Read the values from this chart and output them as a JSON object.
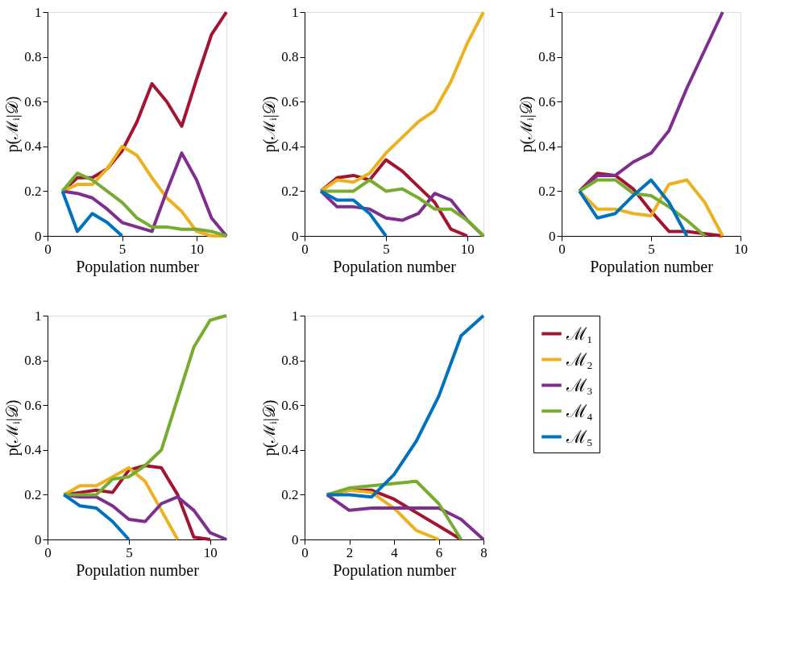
{
  "chart_data": [
    {
      "type": "line",
      "xlabel": "Population number",
      "ylabel": "p(ℳᵢ|𝒟)",
      "xlim": [
        0,
        12
      ],
      "xticks": [
        0,
        5,
        10
      ],
      "ylim": [
        0,
        1
      ],
      "yticks": [
        0,
        0.2,
        0.4,
        0.6,
        0.8,
        1
      ],
      "grid": false,
      "legend": false,
      "line_style": "solid",
      "marker": "none",
      "series": [
        {
          "color": "#a2142f",
          "x": [
            1,
            2,
            3,
            4,
            5,
            6,
            7,
            8,
            9,
            10,
            11,
            12
          ],
          "values": [
            0.2,
            0.26,
            0.26,
            0.3,
            0.38,
            0.51,
            0.68,
            0.6,
            0.49,
            0.7,
            0.9,
            1.0
          ]
        },
        {
          "color": "#edb120",
          "x": [
            1,
            2,
            3,
            4,
            5,
            6,
            7,
            8,
            9,
            10,
            11,
            12
          ],
          "values": [
            0.2,
            0.23,
            0.23,
            0.3,
            0.4,
            0.36,
            0.26,
            0.17,
            0.11,
            0.02,
            0,
            0
          ]
        },
        {
          "color": "#7e2f8e",
          "x": [
            1,
            2,
            3,
            4,
            5,
            6,
            7,
            8,
            9,
            10,
            11,
            12
          ],
          "values": [
            0.2,
            0.19,
            0.17,
            0.12,
            0.06,
            0.04,
            0.02,
            0.2,
            0.37,
            0.25,
            0.08,
            0
          ]
        },
        {
          "color": "#77ac30",
          "x": [
            1,
            2,
            3,
            4,
            5,
            6,
            7,
            8,
            9,
            10,
            11,
            12
          ],
          "values": [
            0.2,
            0.28,
            0.25,
            0.2,
            0.15,
            0.08,
            0.04,
            0.04,
            0.03,
            0.03,
            0.02,
            0
          ]
        },
        {
          "color": "#0072bd",
          "x": [
            1,
            2,
            3,
            4,
            5
          ],
          "values": [
            0.2,
            0.02,
            0.1,
            0.06,
            0
          ]
        }
      ]
    },
    {
      "type": "line",
      "xlabel": "Population number",
      "ylabel": "p(ℳᵢ|𝒟)",
      "xlim": [
        0,
        11
      ],
      "xticks": [
        0,
        5,
        10
      ],
      "ylim": [
        0,
        1
      ],
      "yticks": [
        0,
        0.2,
        0.4,
        0.6,
        0.8,
        1
      ],
      "grid": false,
      "legend": false,
      "line_style": "solid",
      "marker": "none",
      "series": [
        {
          "color": "#a2142f",
          "x": [
            1,
            2,
            3,
            4,
            5,
            6,
            7,
            8,
            9,
            10
          ],
          "values": [
            0.2,
            0.26,
            0.27,
            0.25,
            0.34,
            0.29,
            0.22,
            0.15,
            0.03,
            0
          ]
        },
        {
          "color": "#edb120",
          "x": [
            1,
            2,
            3,
            4,
            5,
            6,
            7,
            8,
            9,
            10,
            11
          ],
          "values": [
            0.2,
            0.25,
            0.24,
            0.28,
            0.37,
            0.44,
            0.51,
            0.56,
            0.69,
            0.86,
            1.0
          ]
        },
        {
          "color": "#7e2f8e",
          "x": [
            1,
            2,
            3,
            4,
            5,
            6,
            7,
            8,
            9,
            10,
            11
          ],
          "values": [
            0.2,
            0.13,
            0.13,
            0.12,
            0.08,
            0.07,
            0.1,
            0.19,
            0.16,
            0.07,
            0
          ]
        },
        {
          "color": "#77ac30",
          "x": [
            1,
            2,
            3,
            4,
            5,
            6,
            7,
            8,
            9,
            10,
            11
          ],
          "values": [
            0.2,
            0.2,
            0.2,
            0.25,
            0.2,
            0.21,
            0.17,
            0.12,
            0.12,
            0.07,
            0
          ]
        },
        {
          "color": "#0072bd",
          "x": [
            1,
            2,
            3,
            4,
            5
          ],
          "values": [
            0.2,
            0.16,
            0.16,
            0.1,
            0
          ]
        }
      ]
    },
    {
      "type": "line",
      "xlabel": "Population number",
      "ylabel": "p(ℳᵢ|𝒟)",
      "xlim": [
        0,
        10
      ],
      "xticks": [
        0,
        5,
        10
      ],
      "ylim": [
        0,
        1
      ],
      "yticks": [
        0,
        0.2,
        0.4,
        0.6,
        0.8,
        1
      ],
      "grid": false,
      "legend": false,
      "line_style": "solid",
      "marker": "none",
      "series": [
        {
          "color": "#a2142f",
          "x": [
            1,
            2,
            3,
            4,
            5,
            6,
            7,
            8,
            9
          ],
          "values": [
            0.2,
            0.28,
            0.27,
            0.21,
            0.11,
            0.02,
            0.02,
            0.01,
            0
          ]
        },
        {
          "color": "#edb120",
          "x": [
            1,
            2,
            3,
            4,
            5,
            6,
            7,
            8,
            9
          ],
          "values": [
            0.2,
            0.12,
            0.12,
            0.1,
            0.09,
            0.23,
            0.25,
            0.15,
            0
          ]
        },
        {
          "color": "#7e2f8e",
          "x": [
            1,
            2,
            3,
            4,
            5,
            6,
            7,
            8,
            9
          ],
          "values": [
            0.2,
            0.27,
            0.27,
            0.33,
            0.37,
            0.47,
            0.66,
            0.83,
            1.0
          ]
        },
        {
          "color": "#77ac30",
          "x": [
            1,
            2,
            3,
            4,
            5,
            6,
            7,
            8
          ],
          "values": [
            0.2,
            0.25,
            0.25,
            0.19,
            0.18,
            0.13,
            0.07,
            0
          ]
        },
        {
          "color": "#0072bd",
          "x": [
            1,
            2,
            3,
            4,
            5,
            6,
            7
          ],
          "values": [
            0.2,
            0.08,
            0.1,
            0.18,
            0.25,
            0.15,
            0
          ]
        }
      ]
    },
    {
      "type": "line",
      "xlabel": "Population number",
      "ylabel": "p(ℳᵢ|𝒟)",
      "xlim": [
        0,
        11
      ],
      "xticks": [
        0,
        5,
        10
      ],
      "ylim": [
        0,
        1
      ],
      "yticks": [
        0,
        0.2,
        0.4,
        0.6,
        0.8,
        1
      ],
      "grid": false,
      "legend": false,
      "line_style": "solid",
      "marker": "none",
      "series": [
        {
          "color": "#a2142f",
          "x": [
            1,
            2,
            3,
            4,
            5,
            6,
            7,
            8,
            9,
            10
          ],
          "values": [
            0.2,
            0.21,
            0.22,
            0.21,
            0.31,
            0.33,
            0.32,
            0.2,
            0.01,
            0
          ]
        },
        {
          "color": "#edb120",
          "x": [
            1,
            2,
            3,
            4,
            5,
            6,
            7,
            8
          ],
          "values": [
            0.2,
            0.24,
            0.24,
            0.28,
            0.32,
            0.26,
            0.13,
            0
          ]
        },
        {
          "color": "#7e2f8e",
          "x": [
            1,
            2,
            3,
            4,
            5,
            6,
            7,
            8,
            9,
            10,
            11
          ],
          "values": [
            0.2,
            0.19,
            0.19,
            0.15,
            0.09,
            0.08,
            0.16,
            0.19,
            0.13,
            0.03,
            0
          ]
        },
        {
          "color": "#77ac30",
          "x": [
            1,
            2,
            3,
            4,
            5,
            6,
            7,
            8,
            9,
            10,
            11
          ],
          "values": [
            0.2,
            0.2,
            0.2,
            0.27,
            0.28,
            0.33,
            0.4,
            0.63,
            0.86,
            0.98,
            1.0
          ]
        },
        {
          "color": "#0072bd",
          "x": [
            1,
            2,
            3,
            4,
            5
          ],
          "values": [
            0.2,
            0.15,
            0.14,
            0.08,
            0
          ]
        }
      ]
    },
    {
      "type": "line",
      "xlabel": "Population number",
      "ylabel": "p(ℳᵢ|𝒟)",
      "xlim": [
        0,
        8
      ],
      "xticks": [
        0,
        2,
        4,
        6,
        8
      ],
      "ylim": [
        0,
        1
      ],
      "yticks": [
        0,
        0.2,
        0.4,
        0.6,
        0.8,
        1
      ],
      "grid": false,
      "legend": "right",
      "line_style": "solid",
      "marker": "none",
      "series": [
        {
          "name": "ℳ₁",
          "color": "#a2142f",
          "x": [
            1,
            2,
            3,
            4,
            5,
            6,
            7
          ],
          "values": [
            0.2,
            0.22,
            0.22,
            0.18,
            0.12,
            0.06,
            0
          ]
        },
        {
          "name": "ℳ₂",
          "color": "#edb120",
          "x": [
            1,
            2,
            3,
            4,
            5,
            6
          ],
          "values": [
            0.2,
            0.22,
            0.21,
            0.14,
            0.04,
            0
          ]
        },
        {
          "name": "ℳ₃",
          "color": "#7e2f8e",
          "x": [
            1,
            2,
            3,
            4,
            5,
            6,
            7,
            8
          ],
          "values": [
            0.2,
            0.13,
            0.14,
            0.14,
            0.14,
            0.14,
            0.09,
            0
          ]
        },
        {
          "name": "ℳ₄",
          "color": "#77ac30",
          "x": [
            1,
            2,
            3,
            4,
            5,
            6,
            7
          ],
          "values": [
            0.2,
            0.23,
            0.24,
            0.25,
            0.26,
            0.16,
            0
          ]
        },
        {
          "name": "ℳ₅",
          "color": "#0072bd",
          "x": [
            1,
            2,
            3,
            4,
            5,
            6,
            7,
            8
          ],
          "values": [
            0.2,
            0.2,
            0.19,
            0.29,
            0.44,
            0.64,
            0.91,
            1.0
          ]
        }
      ]
    }
  ]
}
